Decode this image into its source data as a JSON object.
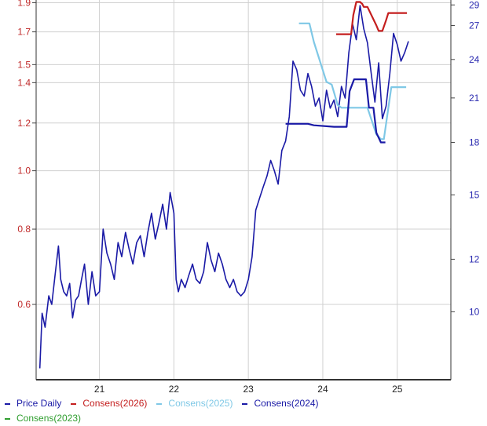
{
  "chart_data": {
    "type": "line",
    "title": "",
    "xlabel": "",
    "ylabel": "",
    "x_ticks": [
      "21",
      "22",
      "23",
      "24",
      "25"
    ],
    "x_range": [
      20.15,
      25.72
    ],
    "y_left": {
      "ticks": [
        "0.6",
        "0.8",
        "1.0",
        "1.2",
        "1.4",
        "1.5",
        "1.7",
        "1.9"
      ],
      "scale": "log",
      "range": [
        0.45,
        1.92
      ]
    },
    "y_right": {
      "ticks": [
        "10",
        "12",
        "15",
        "18",
        "21",
        "24",
        "27",
        "29"
      ],
      "scale": "log",
      "range": [
        7.9,
        29.5
      ]
    },
    "grid": true,
    "legend_position": "bottom",
    "series": [
      {
        "name": "Price Daily",
        "axis": "left",
        "color": "#1a1aa6",
        "x": [
          20.2,
          20.23,
          20.27,
          20.32,
          20.36,
          20.41,
          20.45,
          20.48,
          20.52,
          20.56,
          20.6,
          20.64,
          20.68,
          20.72,
          20.76,
          20.8,
          20.85,
          20.9,
          20.95,
          21.0,
          21.05,
          21.1,
          21.15,
          21.2,
          21.25,
          21.3,
          21.35,
          21.4,
          21.45,
          21.5,
          21.55,
          21.6,
          21.65,
          21.7,
          21.75,
          21.8,
          21.85,
          21.9,
          21.95,
          22.0,
          22.03,
          22.06,
          22.1,
          22.15,
          22.2,
          22.25,
          22.3,
          22.35,
          22.4,
          22.45,
          22.5,
          22.55,
          22.6,
          22.65,
          22.7,
          22.75,
          22.8,
          22.85,
          22.9,
          22.95,
          23.0,
          23.05,
          23.1,
          23.15,
          23.2,
          23.25,
          23.3,
          23.35,
          23.4,
          23.45,
          23.5,
          23.55,
          23.6,
          23.65,
          23.7,
          23.75,
          23.8,
          23.85,
          23.9,
          23.95,
          24.0,
          24.05,
          24.1,
          24.15,
          24.2,
          24.25,
          24.3,
          24.35,
          24.4,
          24.45,
          24.5,
          24.55,
          24.6,
          24.65,
          24.7,
          24.75,
          24.8,
          24.85,
          24.9,
          24.95,
          25.0,
          25.05,
          25.1,
          25.15
        ],
        "values": [
          0.47,
          0.58,
          0.55,
          0.62,
          0.6,
          0.68,
          0.75,
          0.66,
          0.63,
          0.62,
          0.65,
          0.57,
          0.61,
          0.62,
          0.66,
          0.7,
          0.6,
          0.68,
          0.62,
          0.63,
          0.8,
          0.73,
          0.7,
          0.66,
          0.76,
          0.72,
          0.79,
          0.74,
          0.7,
          0.76,
          0.78,
          0.72,
          0.79,
          0.85,
          0.77,
          0.82,
          0.88,
          0.8,
          0.92,
          0.85,
          0.66,
          0.63,
          0.66,
          0.64,
          0.67,
          0.7,
          0.66,
          0.65,
          0.68,
          0.76,
          0.71,
          0.68,
          0.73,
          0.7,
          0.66,
          0.64,
          0.66,
          0.63,
          0.62,
          0.63,
          0.66,
          0.72,
          0.86,
          0.9,
          0.94,
          0.98,
          1.04,
          1.0,
          0.95,
          1.08,
          1.12,
          1.23,
          1.52,
          1.47,
          1.36,
          1.33,
          1.45,
          1.38,
          1.28,
          1.32,
          1.21,
          1.36,
          1.27,
          1.31,
          1.23,
          1.38,
          1.32,
          1.57,
          1.75,
          1.65,
          1.88,
          1.72,
          1.63,
          1.45,
          1.3,
          1.51,
          1.22,
          1.28,
          1.45,
          1.69,
          1.62,
          1.52,
          1.57,
          1.64
        ]
      },
      {
        "name": "Consens(2026)",
        "axis": "right",
        "color": "#c41e1e",
        "x": [
          24.18,
          24.33,
          24.38,
          24.41,
          24.45,
          24.5,
          24.53,
          24.55,
          24.6,
          24.72,
          24.75,
          24.8,
          24.85,
          24.88,
          25.13
        ],
        "values": [
          26.2,
          26.2,
          26.2,
          28.0,
          29.3,
          29.3,
          29.1,
          28.8,
          28.8,
          27.0,
          26.5,
          26.5,
          27.5,
          28.2,
          28.2
        ]
      },
      {
        "name": "Consens(2025)",
        "axis": "right",
        "color": "#7fc8e6",
        "x": [
          23.68,
          23.82,
          23.88,
          24.05,
          24.12,
          24.2,
          24.25,
          24.35,
          24.4,
          24.5,
          24.6,
          24.72,
          24.78,
          24.82,
          24.92,
          25.12
        ],
        "values": [
          27.2,
          27.2,
          25.5,
          22.2,
          22.0,
          20.5,
          20.3,
          20.3,
          20.3,
          20.3,
          20.3,
          18.5,
          18.2,
          18.2,
          21.8,
          21.8
        ]
      },
      {
        "name": "Consens(2024)",
        "axis": "right",
        "color": "#1a1aa6",
        "x": [
          23.5,
          23.8,
          23.88,
          24.15,
          24.22,
          24.32,
          24.36,
          24.42,
          24.48,
          24.58,
          24.62,
          24.68,
          24.72,
          24.78,
          24.84
        ],
        "values": [
          19.2,
          19.2,
          19.1,
          19.0,
          19.0,
          19.0,
          21.5,
          22.4,
          22.4,
          22.4,
          20.3,
          20.3,
          18.6,
          18.0,
          18.0
        ]
      },
      {
        "name": "Consens(2023)",
        "axis": "right",
        "color": "#2f9e2f",
        "x": [],
        "values": []
      }
    ]
  }
}
